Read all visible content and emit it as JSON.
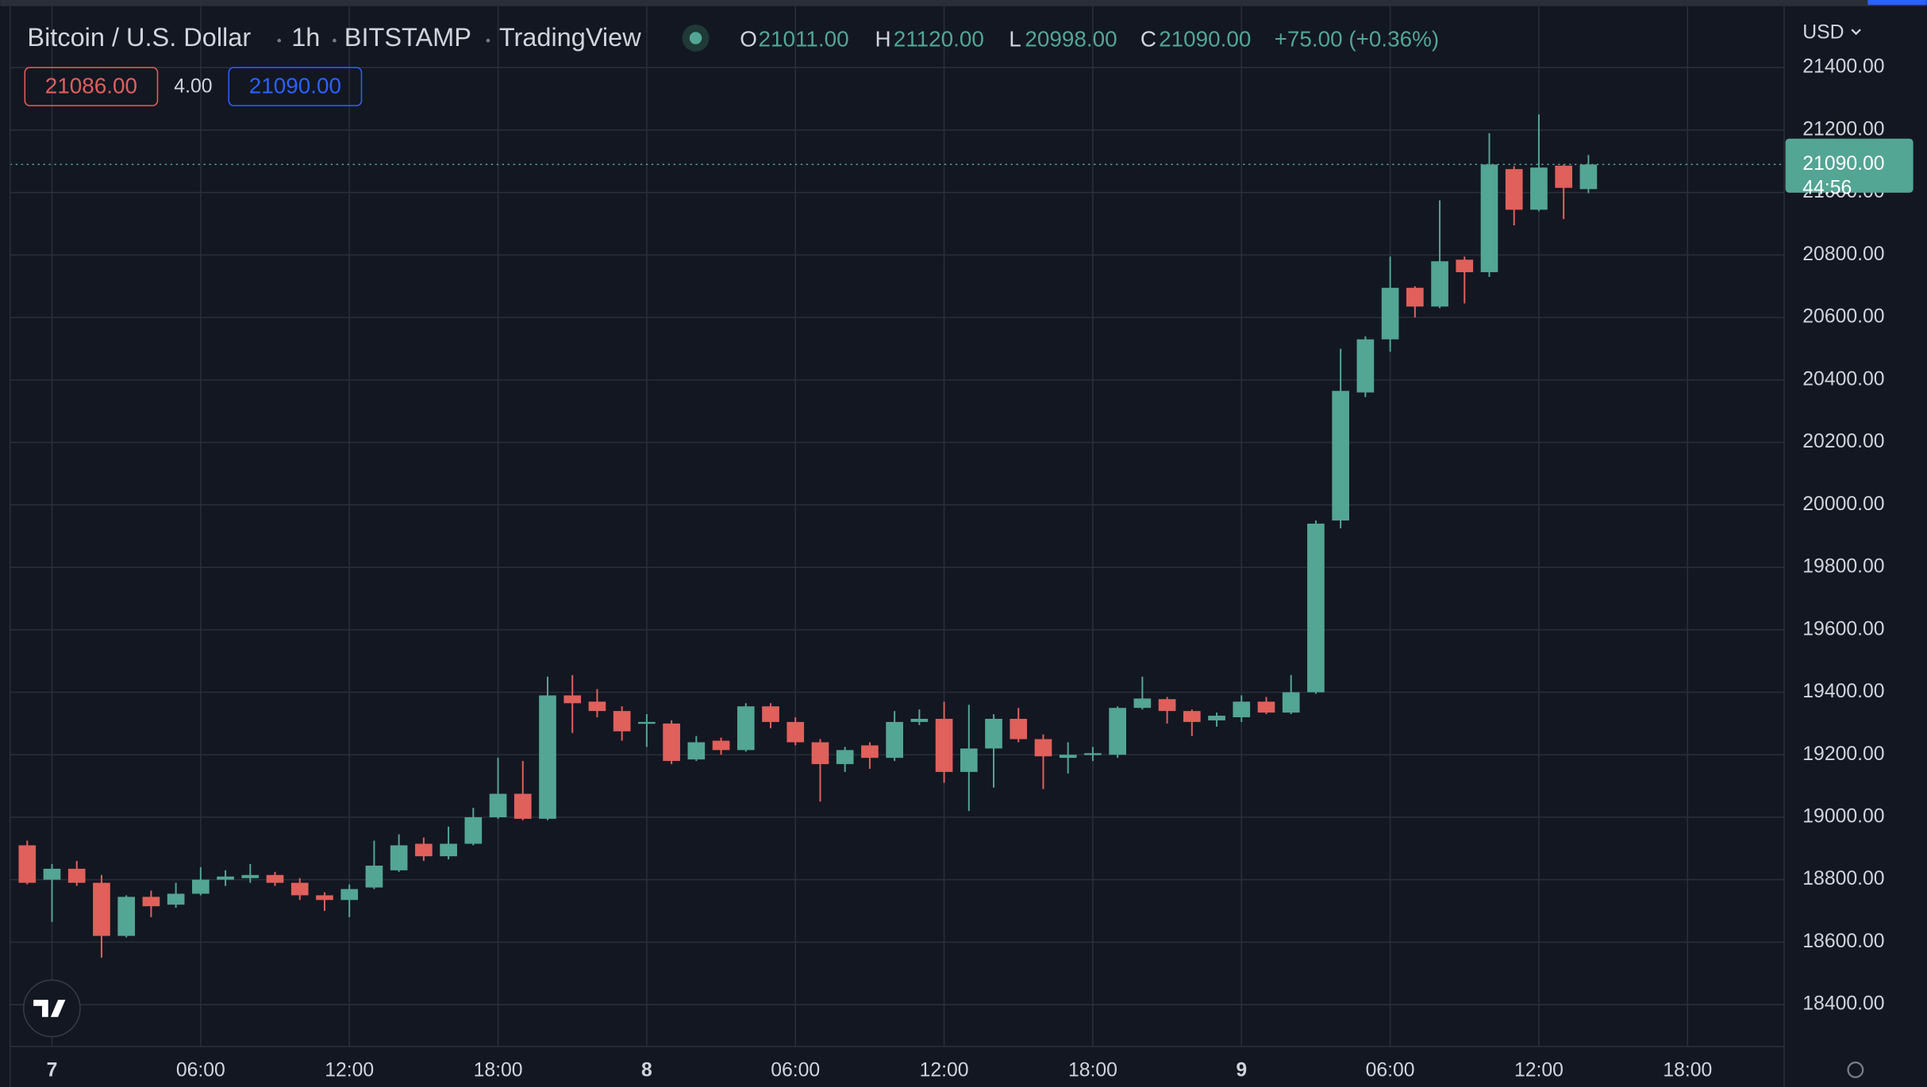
{
  "chart_data": {
    "type": "candlestick",
    "header": {
      "symbol": "Bitcoin / U.S. Dollar",
      "interval": "1h",
      "exchange": "BITSTAMP",
      "source": "TradingView",
      "open_key": "O",
      "open": "21011.00",
      "high_key": "H",
      "high": "21120.00",
      "low_key": "L",
      "low": "20998.00",
      "close_key": "C",
      "close": "21090.00",
      "change": "+75.00 (+0.36%)"
    },
    "badges": {
      "bid": "21086.00",
      "spread": "4.00",
      "ask": "21090.00"
    },
    "currency": "USD",
    "price_label": "21090.00",
    "countdown": "44:56",
    "up_color": "#53a594",
    "down_color": "#e0605b",
    "grid": true,
    "x": [
      -1,
      0,
      1,
      2,
      3,
      4,
      5,
      6,
      7,
      8,
      9,
      10,
      11,
      12,
      13,
      14,
      15,
      16,
      17,
      18,
      19,
      20,
      21,
      22,
      23,
      24,
      25,
      26,
      27,
      28,
      29,
      30,
      31,
      32,
      33,
      34,
      35,
      36,
      37,
      38,
      39,
      40,
      41,
      42,
      43,
      44,
      45,
      46,
      47,
      48,
      49,
      50,
      51,
      52,
      53,
      54,
      55,
      56,
      57,
      58,
      59,
      60,
      61,
      62
    ],
    "open": [
      18910,
      18800,
      18835,
      18790,
      18620,
      18745,
      18720,
      18755,
      18800,
      18805,
      18815,
      18790,
      18750,
      18735,
      18775,
      18830,
      18915,
      18875,
      18915,
      19000,
      19075,
      18995,
      19390,
      19370,
      19340,
      19300,
      19300,
      19185,
      19245,
      19215,
      19355,
      19305,
      19240,
      19170,
      19230,
      19190,
      19305,
      19315,
      19145,
      19220,
      19315,
      19250,
      19190,
      19200,
      19200,
      19350,
      19378,
      19340,
      19310,
      19320,
      19370,
      19335,
      19400,
      19950,
      20360,
      20530,
      20695,
      20635,
      20785,
      20745,
      21075,
      20945,
      21086,
      21011
    ],
    "high": [
      18925,
      18850,
      18860,
      18815,
      18750,
      18765,
      18790,
      18840,
      18830,
      18850,
      18825,
      18805,
      18760,
      18785,
      18925,
      18945,
      18935,
      18970,
      19030,
      19190,
      19180,
      19450,
      19455,
      19410,
      19355,
      19330,
      19310,
      19260,
      19255,
      19365,
      19365,
      19320,
      19250,
      19225,
      19240,
      19340,
      19345,
      19370,
      19360,
      19330,
      19350,
      19265,
      19240,
      19225,
      19355,
      19450,
      19385,
      19345,
      19335,
      19390,
      19385,
      19455,
      19950,
      20500,
      20540,
      20795,
      20700,
      20975,
      20795,
      21190,
      21085,
      21250,
      21090,
      21120
    ],
    "low": [
      18785,
      18665,
      18780,
      18550,
      18615,
      18680,
      18710,
      18750,
      18780,
      18790,
      18780,
      18735,
      18700,
      18680,
      18770,
      18825,
      18860,
      18865,
      18910,
      18995,
      18990,
      18990,
      19270,
      19320,
      19245,
      19225,
      19170,
      19180,
      19200,
      19210,
      19285,
      19230,
      19050,
      19145,
      19155,
      19180,
      19295,
      19110,
      19020,
      19095,
      19240,
      19090,
      19140,
      19180,
      19190,
      19345,
      19300,
      19260,
      19290,
      19305,
      19330,
      19330,
      19395,
      19925,
      20345,
      20490,
      20600,
      20630,
      20645,
      20730,
      20895,
      20940,
      20915,
      20998
    ],
    "close": [
      18790,
      18835,
      18790,
      18620,
      18745,
      18715,
      18755,
      18800,
      18810,
      18815,
      18790,
      18750,
      18735,
      18770,
      18845,
      18910,
      18875,
      18915,
      19000,
      19075,
      18995,
      19390,
      19365,
      19340,
      19275,
      19305,
      19180,
      19240,
      19215,
      19355,
      19305,
      19240,
      19170,
      19215,
      19190,
      19305,
      19315,
      19145,
      19220,
      19315,
      19250,
      19195,
      19200,
      19205,
      19350,
      19380,
      19340,
      19305,
      19325,
      19370,
      19335,
      19400,
      19940,
      20365,
      20530,
      20695,
      20635,
      20780,
      20745,
      21090,
      20945,
      21080,
      21015,
      21090
    ],
    "xlim": [
      -1.69,
      69.9
    ],
    "xticks": [
      {
        "value": 0,
        "label": "7"
      },
      {
        "value": 6,
        "label": "06:00"
      },
      {
        "value": 12,
        "label": "12:00"
      },
      {
        "value": 18,
        "label": "18:00"
      },
      {
        "value": 24,
        "label": "8"
      },
      {
        "value": 30,
        "label": "06:00"
      },
      {
        "value": 36,
        "label": "12:00"
      },
      {
        "value": 42,
        "label": "18:00"
      },
      {
        "value": 48,
        "label": "9"
      },
      {
        "value": 54,
        "label": "06:00"
      },
      {
        "value": 60,
        "label": "12:00"
      },
      {
        "value": 66,
        "label": "18:00"
      }
    ],
    "ylim": [
      18266,
      21585
    ],
    "yticks": [
      {
        "value": 18400,
        "label": "18400.00"
      },
      {
        "value": 18600,
        "label": "18600.00"
      },
      {
        "value": 18800,
        "label": "18800.00"
      },
      {
        "value": 19000,
        "label": "19000.00"
      },
      {
        "value": 19200,
        "label": "19200.00"
      },
      {
        "value": 19400,
        "label": "19400.00"
      },
      {
        "value": 19600,
        "label": "19600.00"
      },
      {
        "value": 19800,
        "label": "19800.00"
      },
      {
        "value": 20000,
        "label": "20000.00"
      },
      {
        "value": 20200,
        "label": "20200.00"
      },
      {
        "value": 20400,
        "label": "20400.00"
      },
      {
        "value": 20600,
        "label": "20600.00"
      },
      {
        "value": 20800,
        "label": "20800.00"
      },
      {
        "value": 21000,
        "label": "21000.00"
      },
      {
        "value": 21200,
        "label": "21200.00"
      },
      {
        "value": 21400,
        "label": "21400.00"
      }
    ]
  }
}
